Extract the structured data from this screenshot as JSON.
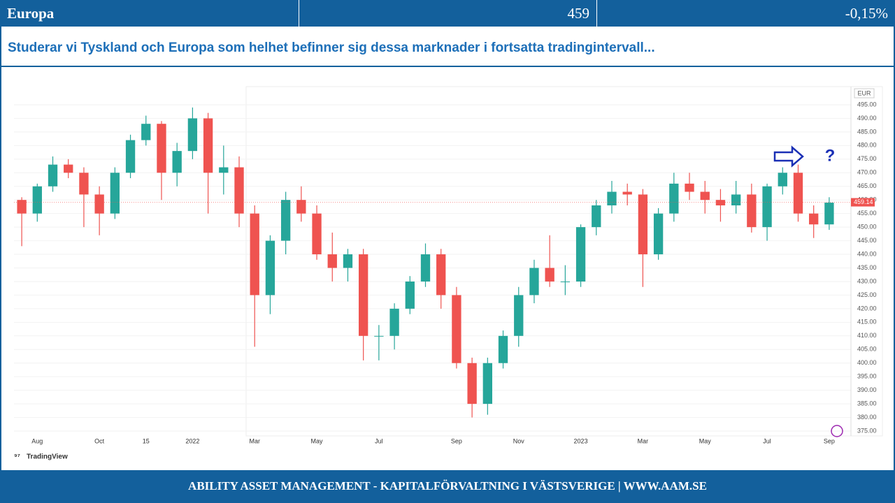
{
  "header": {
    "title": "Europa",
    "price": "459",
    "change": "-0,15%"
  },
  "subtitle": "Studerar vi Tyskland och Europa som helhet befinner sig dessa marknader i fortsatta tradingintervall...",
  "footer": "ABILITY ASSET MANAGEMENT -  KAPITALFÖRVALTNING I VÄSTSVERIGE  |  WWW.AAM.SE",
  "chart_data": {
    "type": "candlestick",
    "currency": "EUR",
    "source": "TradingView",
    "annotation": "?",
    "categories": [
      null,
      "Aug",
      null,
      null,
      null,
      "Oct",
      null,
      null,
      "15",
      null,
      null,
      "2022",
      null,
      null,
      null,
      "Mar",
      null,
      null,
      null,
      "May",
      null,
      null,
      null,
      "Jul",
      null,
      null,
      null,
      null,
      "Sep",
      null,
      null,
      null,
      "Nov",
      null,
      null,
      null,
      "2023",
      null,
      null,
      null,
      "Mar",
      null,
      null,
      null,
      "May",
      null,
      null,
      null,
      "Jul",
      null,
      null,
      null,
      "Sep"
    ],
    "open": [
      460,
      455,
      465,
      473,
      470,
      462,
      455,
      470,
      482,
      488,
      470,
      478,
      490,
      470,
      472,
      455,
      425,
      445,
      460,
      455,
      440,
      435,
      440,
      410,
      410,
      420,
      430,
      440,
      425,
      400,
      385,
      400,
      410,
      425,
      435,
      430,
      430,
      450,
      458,
      463,
      462,
      440,
      455,
      466,
      463,
      460,
      458,
      462,
      450,
      465,
      470,
      455,
      451
    ],
    "high": [
      461,
      466,
      476,
      475,
      472,
      465,
      472,
      484,
      491,
      489,
      481,
      494,
      492,
      480,
      476,
      458,
      447,
      463,
      465,
      458,
      448,
      442,
      442,
      414,
      422,
      432,
      444,
      442,
      428,
      402,
      402,
      412,
      428,
      438,
      447,
      436,
      451,
      460,
      467,
      466,
      464,
      457,
      470,
      470,
      467,
      464,
      467,
      466,
      466,
      472,
      473,
      458,
      461
    ],
    "low": [
      443,
      452,
      463,
      468,
      450,
      447,
      453,
      468,
      480,
      460,
      465,
      475,
      455,
      462,
      450,
      406,
      418,
      440,
      452,
      438,
      430,
      430,
      401,
      401,
      405,
      418,
      428,
      420,
      398,
      380,
      381,
      398,
      406,
      422,
      428,
      425,
      428,
      447,
      455,
      458,
      428,
      438,
      452,
      460,
      455,
      452,
      455,
      448,
      445,
      462,
      452,
      446,
      449
    ],
    "close": [
      455,
      465,
      473,
      470,
      462,
      455,
      470,
      482,
      488,
      470,
      478,
      490,
      470,
      472,
      455,
      425,
      445,
      460,
      455,
      440,
      435,
      440,
      410,
      410,
      420,
      430,
      440,
      425,
      400,
      385,
      400,
      410,
      425,
      435,
      430,
      430,
      450,
      458,
      463,
      462,
      440,
      455,
      466,
      463,
      460,
      458,
      462,
      450,
      465,
      470,
      455,
      451,
      459
    ],
    "up_color": "#26a69a",
    "down_color": "#ef5350",
    "last_price": {
      "value": 459.14,
      "label": "459.14"
    },
    "ylim": [
      372,
      498
    ],
    "yticks": [
      {
        "value": 375,
        "label": "375.00"
      },
      {
        "value": 380,
        "label": "380.00"
      },
      {
        "value": 385,
        "label": "385.00"
      },
      {
        "value": 390,
        "label": "390.00"
      },
      {
        "value": 395,
        "label": "395.00"
      },
      {
        "value": 400,
        "label": "400.00"
      },
      {
        "value": 405,
        "label": "405.00"
      },
      {
        "value": 410,
        "label": "410.00"
      },
      {
        "value": 415,
        "label": "415.00"
      },
      {
        "value": 420,
        "label": "420.00"
      },
      {
        "value": 425,
        "label": "425.00"
      },
      {
        "value": 430,
        "label": "430.00"
      },
      {
        "value": 435,
        "label": "435.00"
      },
      {
        "value": 440,
        "label": "440.00"
      },
      {
        "value": 445,
        "label": "445.00"
      },
      {
        "value": 450,
        "label": "450.00"
      },
      {
        "value": 455,
        "label": "455.00"
      },
      {
        "value": 460,
        "label": "460.00"
      },
      {
        "value": 465,
        "label": "465.00"
      },
      {
        "value": 470,
        "label": "470.00"
      },
      {
        "value": 475,
        "label": "475.00"
      },
      {
        "value": 480,
        "label": "480.00"
      },
      {
        "value": 485,
        "label": "485.00"
      },
      {
        "value": 490,
        "label": "490.00"
      },
      {
        "value": 495,
        "label": "495.00"
      }
    ],
    "grid": true
  }
}
